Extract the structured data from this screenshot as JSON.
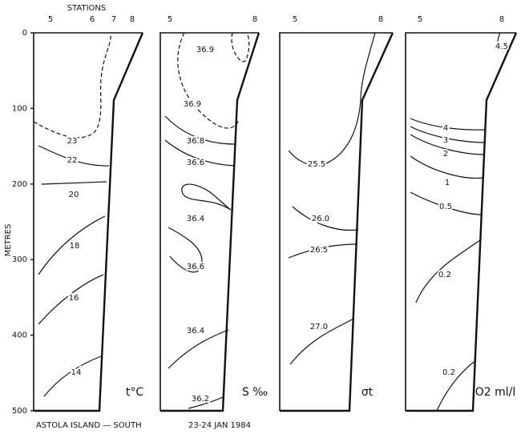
{
  "stations_label": "STATIONS",
  "depth_axis": {
    "label": "METRES",
    "range": [
      0,
      500
    ],
    "ticks": [
      0,
      100,
      200,
      300,
      400,
      500
    ]
  },
  "panels": [
    {
      "stations": [
        "5",
        "6",
        "7",
        "8"
      ],
      "parameter": "t°C",
      "contour_labels": [
        "23",
        "22",
        "20",
        "18",
        "16",
        "14"
      ]
    },
    {
      "stations": [
        "5",
        "8"
      ],
      "parameter": "S ‰",
      "contour_labels": [
        "36.9",
        "36.9",
        "36.8",
        "36.6",
        "36.4",
        "36.6",
        "36.4",
        "36.2"
      ]
    },
    {
      "stations": [
        "5",
        "8"
      ],
      "parameter": "σt",
      "contour_labels": [
        "25.5",
        "26.0",
        "26.5",
        "27.0"
      ]
    },
    {
      "stations": [
        "5",
        "8"
      ],
      "parameter": "O2 ml/l",
      "contour_labels": [
        "4.5",
        "4",
        "3",
        "2",
        "1",
        "0.5",
        "0.2",
        "0.2"
      ]
    }
  ],
  "footer": {
    "location": "ASTOLA ISLAND — SOUTH",
    "date": "23-24 JAN 1984"
  }
}
